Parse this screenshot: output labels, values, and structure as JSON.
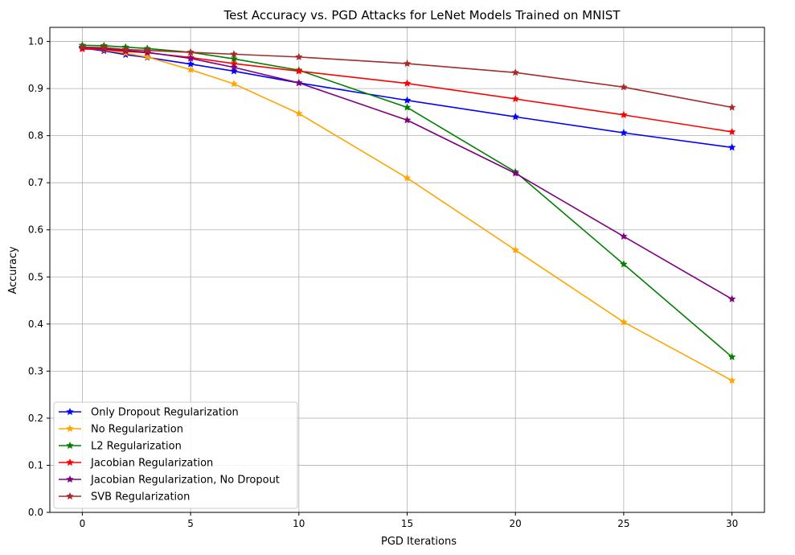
{
  "chart_data": {
    "type": "line",
    "title": "Test Accuracy vs. PGD Attacks for LeNet Models Trained on MNIST",
    "xlabel": "PGD Iterations",
    "ylabel": "Accuracy",
    "xlim": [
      -1.5,
      31.5
    ],
    "ylim": [
      0.0,
      1.03
    ],
    "xticks": [
      0,
      5,
      10,
      15,
      20,
      25,
      30
    ],
    "yticks": [
      0.0,
      0.1,
      0.2,
      0.3,
      0.4,
      0.5,
      0.6,
      0.7,
      0.8,
      0.9,
      1.0
    ],
    "grid": true,
    "legend_position": "lower-left",
    "marker": "star",
    "x": [
      0,
      1,
      2,
      3,
      5,
      7,
      10,
      15,
      20,
      25,
      30
    ],
    "series": [
      {
        "name": "Only Dropout Regularization",
        "color": "#0000ff",
        "values": [
          0.986,
          0.98,
          0.972,
          0.966,
          0.952,
          0.937,
          0.912,
          0.875,
          0.84,
          0.806,
          0.775
        ]
      },
      {
        "name": "No Regularization",
        "color": "#ffa500",
        "values": [
          0.988,
          0.982,
          0.975,
          0.967,
          0.94,
          0.91,
          0.847,
          0.71,
          0.557,
          0.404,
          0.28
        ]
      },
      {
        "name": "L2 Regularization",
        "color": "#008000",
        "values": [
          0.992,
          0.991,
          0.988,
          0.985,
          0.977,
          0.963,
          0.939,
          0.86,
          0.723,
          0.527,
          0.33
        ]
      },
      {
        "name": "Jacobian Regularization",
        "color": "#ff0000",
        "values": [
          0.984,
          0.983,
          0.979,
          0.976,
          0.966,
          0.953,
          0.937,
          0.911,
          0.878,
          0.844,
          0.808
        ]
      },
      {
        "name": "Jacobian Regularization, No Dropout",
        "color": "#800080",
        "values": [
          0.987,
          0.985,
          0.981,
          0.977,
          0.964,
          0.945,
          0.912,
          0.833,
          0.72,
          0.586,
          0.453
        ]
      },
      {
        "name": "SVB Regularization",
        "color": "#a52a2a",
        "values": [
          0.988,
          0.987,
          0.983,
          0.981,
          0.977,
          0.973,
          0.967,
          0.953,
          0.934,
          0.903,
          0.86
        ]
      }
    ]
  }
}
